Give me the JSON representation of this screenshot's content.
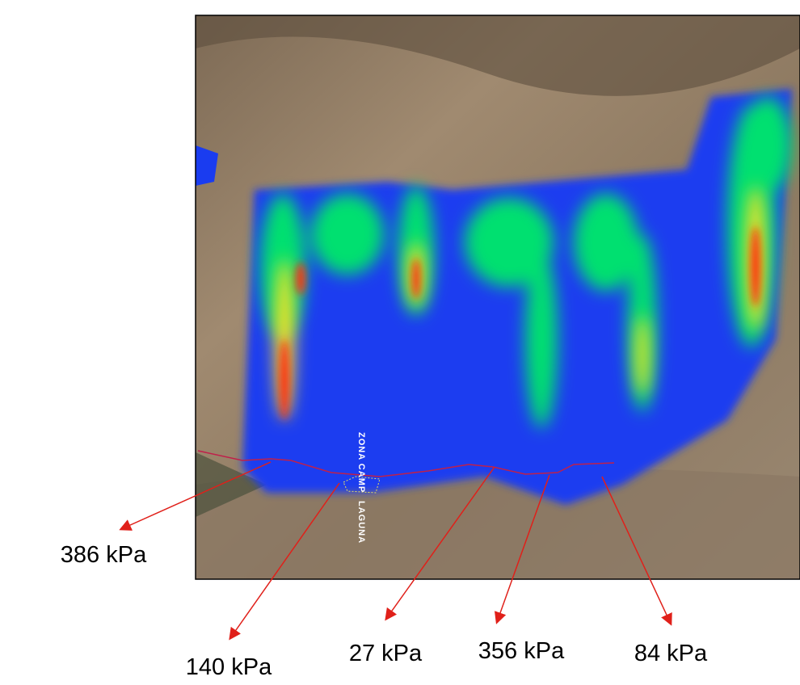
{
  "map": {
    "labels": [
      "ZONA CAMP",
      "LAGUNA"
    ]
  },
  "annotations": [
    {
      "label": "386 kPa"
    },
    {
      "label": "140 kPa"
    },
    {
      "label": "27 kPa"
    },
    {
      "label": "356 kPa"
    },
    {
      "label": "84 kPa"
    }
  ]
}
